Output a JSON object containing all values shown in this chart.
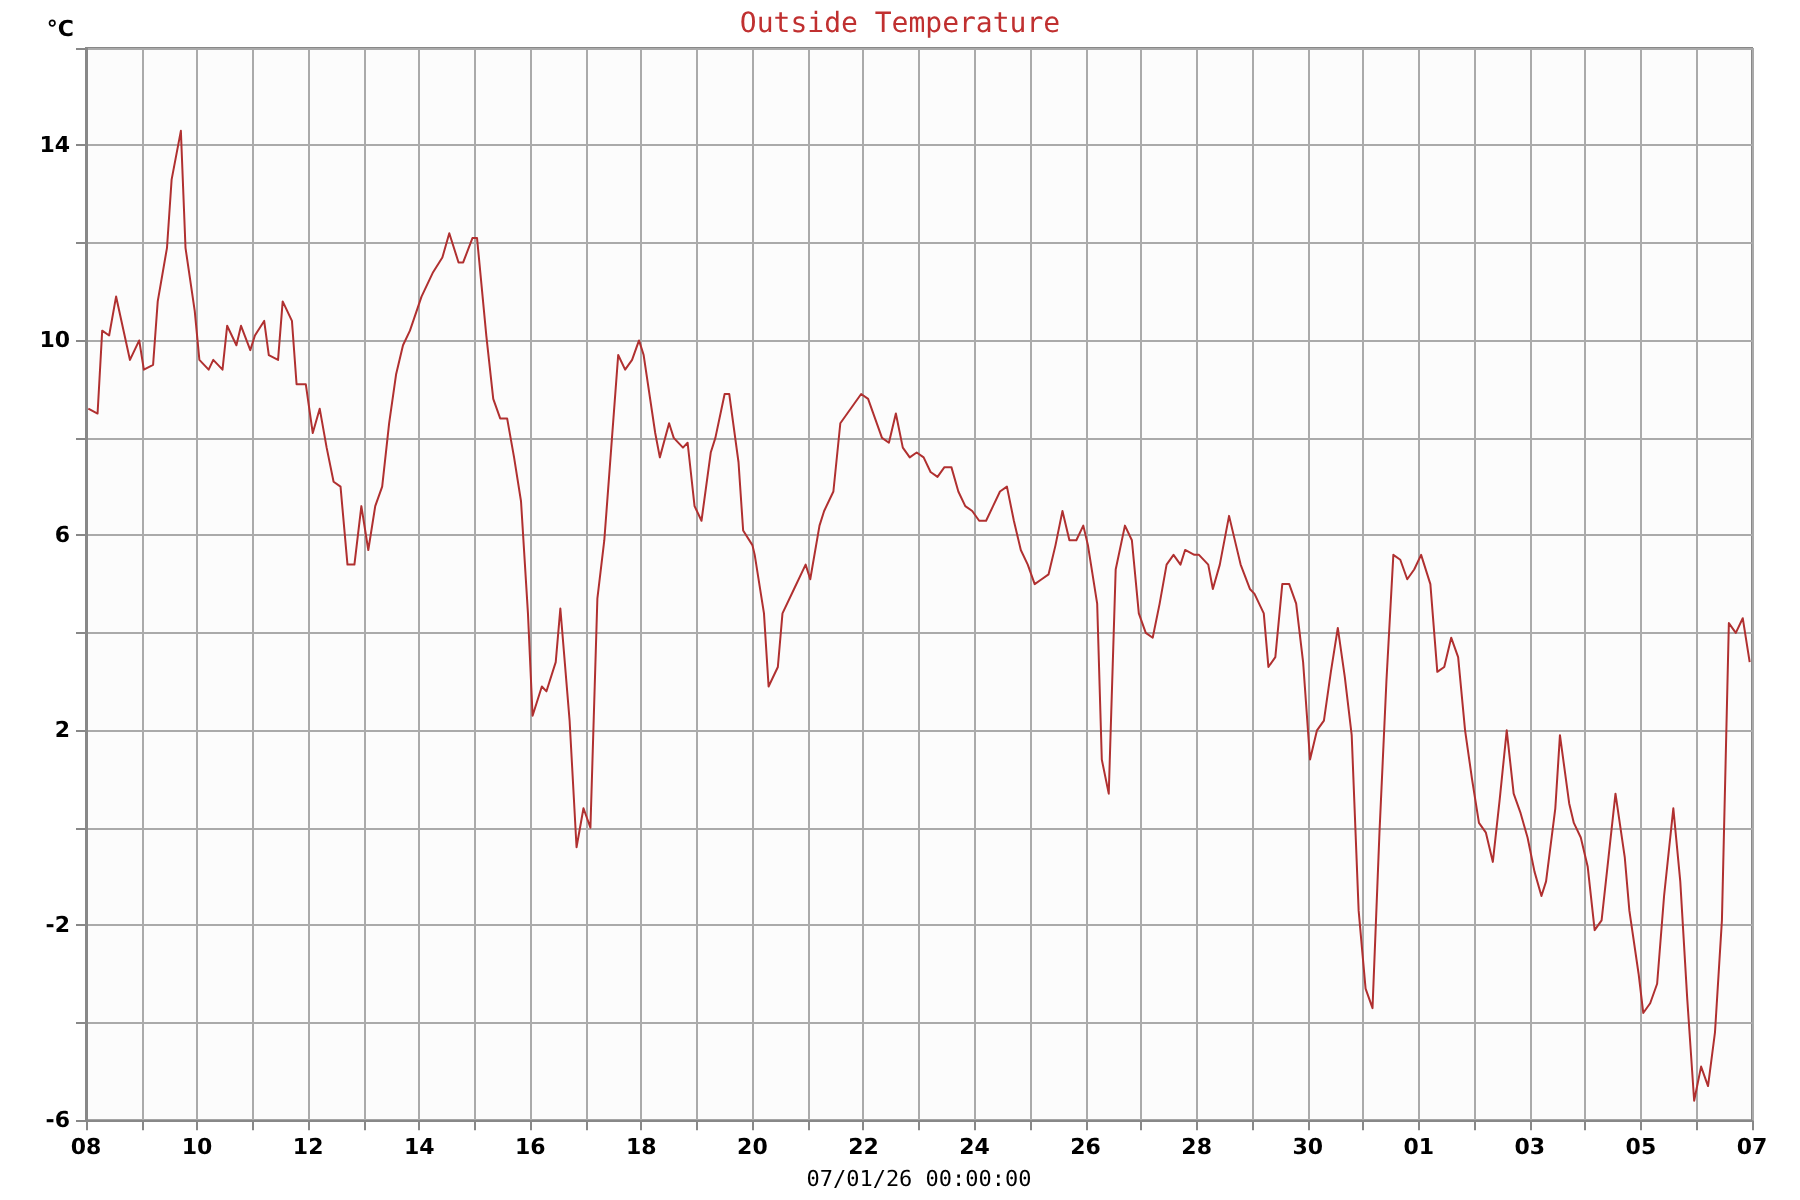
{
  "chart_data": {
    "type": "line",
    "title": "Outside Temperature",
    "ylabel": "°C",
    "xlabel": "07/01/26 00:00:00",
    "xlim": [
      "--01-08",
      "--02-07"
    ],
    "xticks": [
      {
        "value": "--01-08",
        "label": "08"
      },
      {
        "value": "--01-09",
        "label": null
      },
      {
        "value": "--01-10",
        "label": "10"
      },
      {
        "value": "--01-11",
        "label": null
      },
      {
        "value": "--01-12",
        "label": "12"
      },
      {
        "value": "--01-13",
        "label": null
      },
      {
        "value": "--01-14",
        "label": "14"
      },
      {
        "value": "--01-15",
        "label": null
      },
      {
        "value": "--01-16",
        "label": "16"
      },
      {
        "value": "--01-17",
        "label": null
      },
      {
        "value": "--01-18",
        "label": "18"
      },
      {
        "value": "--01-19",
        "label": null
      },
      {
        "value": "--01-20",
        "label": "20"
      },
      {
        "value": "--01-21",
        "label": null
      },
      {
        "value": "--01-22",
        "label": "22"
      },
      {
        "value": "--01-23",
        "label": null
      },
      {
        "value": "--01-24",
        "label": "24"
      },
      {
        "value": "--01-25",
        "label": null
      },
      {
        "value": "--01-26",
        "label": "26"
      },
      {
        "value": "--01-27",
        "label": null
      },
      {
        "value": "--01-28",
        "label": "28"
      },
      {
        "value": "--01-29",
        "label": null
      },
      {
        "value": "--01-30",
        "label": "30"
      },
      {
        "value": "--01-31",
        "label": null
      },
      {
        "value": "--02-01",
        "label": "01"
      },
      {
        "value": "--02-02",
        "label": null
      },
      {
        "value": "--02-03",
        "label": "03"
      },
      {
        "value": "--02-04",
        "label": null
      },
      {
        "value": "--02-05",
        "label": "05"
      },
      {
        "value": "--02-06",
        "label": null
      },
      {
        "value": "--02-07",
        "label": "07"
      }
    ],
    "ylim": [
      -6,
      16
    ],
    "yticks": [
      -6,
      {
        "value": -4,
        "label": null
      },
      -2,
      {
        "value": 0,
        "label": null
      },
      2,
      {
        "value": 4,
        "label": null
      },
      6,
      {
        "value": 8,
        "label": null
      },
      10,
      {
        "value": 12,
        "label": null
      },
      14,
      {
        "value": 16,
        "label": null
      }
    ],
    "grid": true,
    "marker": "none",
    "line_style": "solid",
    "series": [
      {
        "color": "#b03030",
        "x": [
          "--01-08T01:00",
          "--01-08T05:00",
          "--01-08T07:00",
          "--01-08T10:00",
          "--01-08T13:00",
          "--01-08T19:00",
          "--01-08T23:00",
          "--01-09T01:00",
          "--01-09T05:00",
          "--01-09T07:00",
          "--01-09T11:00",
          "--01-09T13:00",
          "--01-09T17:00",
          "--01-09T19:00",
          "--01-09T23:00",
          "--01-10T01:00",
          "--01-10T05:00",
          "--01-10T07:00",
          "--01-10T11:00",
          "--01-10T13:00",
          "--01-10T17:00",
          "--01-10T19:00",
          "--01-10T23:00",
          "--01-11T01:00",
          "--01-11T05:00",
          "--01-11T07:00",
          "--01-11T11:00",
          "--01-11T13:00",
          "--01-11T17:00",
          "--01-11T19:00",
          "--01-11T23:00",
          "--01-12T02:00",
          "--01-12T05:00",
          "--01-12T08:00",
          "--01-12T11:00",
          "--01-12T14:00",
          "--01-12T17:00",
          "--01-12T20:00",
          "--01-12T23:00",
          "--01-13T02:00",
          "--01-13T05:00",
          "--01-13T08:00",
          "--01-13T11:00",
          "--01-13T14:00",
          "--01-13T17:00",
          "--01-13T20:00",
          "--01-14T01:00",
          "--01-14T06:00",
          "--01-14T10:00",
          "--01-14T13:00",
          "--01-14T17:00",
          "--01-14T19:00",
          "--01-14T23:00",
          "--01-15T01:00",
          "--01-15T05:00",
          "--01-15T08:00",
          "--01-15T11:00",
          "--01-15T14:00",
          "--01-15T17:00",
          "--01-15T20:00",
          "--01-15T23:00",
          "--01-16T01:00",
          "--01-16T05:00",
          "--01-16T07:00",
          "--01-16T11:00",
          "--01-16T13:00",
          "--01-16T17:00",
          "--01-16T20:00",
          "--01-16T23:00",
          "--01-17T02:00",
          "--01-17T05:00",
          "--01-17T08:00",
          "--01-17T11:00",
          "--01-17T14:00",
          "--01-17T17:00",
          "--01-17T20:00",
          "--01-17T23:00",
          "--01-18T01:00",
          "--01-18T06:00",
          "--01-18T08:00",
          "--01-18T12:00",
          "--01-18T14:00",
          "--01-18T18:00",
          "--01-18T20:00",
          "--01-18T23:00",
          "--01-19T02:00",
          "--01-19T06:00",
          "--01-19T08:00",
          "--01-19T12:00",
          "--01-19T14:00",
          "--01-19T18:00",
          "--01-19T20:00",
          "--01-20T00:00",
          "--01-20T01:00",
          "--01-20T05:00",
          "--01-20T07:00",
          "--01-20T11:00",
          "--01-20T13:00",
          "--01-20T18:00",
          "--01-20T23:00",
          "--01-21T01:00",
          "--01-21T05:00",
          "--01-21T07:00",
          "--01-21T11:00",
          "--01-21T14:00",
          "--01-21T17:00",
          "--01-21T20:00",
          "--01-21T23:00",
          "--01-22T02:00",
          "--01-22T05:00",
          "--01-22T08:00",
          "--01-22T11:00",
          "--01-22T14:00",
          "--01-22T17:00",
          "--01-22T20:00",
          "--01-22T23:00",
          "--01-23T02:00",
          "--01-23T05:00",
          "--01-23T08:00",
          "--01-23T11:00",
          "--01-23T14:00",
          "--01-23T17:00",
          "--01-23T20:00",
          "--01-23T23:00",
          "--01-24T02:00",
          "--01-24T05:00",
          "--01-24T08:00",
          "--01-24T11:00",
          "--01-24T14:00",
          "--01-24T17:00",
          "--01-24T20:00",
          "--01-24T23:00",
          "--01-25T02:00",
          "--01-25T05:00",
          "--01-25T08:00",
          "--01-25T11:00",
          "--01-25T14:00",
          "--01-25T17:00",
          "--01-25T20:00",
          "--01-25T23:00",
          "--01-26T01:00",
          "--01-26T05:00",
          "--01-26T07:00",
          "--01-26T10:00",
          "--01-26T13:00",
          "--01-26T17:00",
          "--01-26T20:00",
          "--01-26T23:00",
          "--01-27T02:00",
          "--01-27T05:00",
          "--01-27T08:00",
          "--01-27T11:00",
          "--01-27T14:00",
          "--01-27T17:00",
          "--01-27T19:00",
          "--01-27T23:00",
          "--01-28T01:00",
          "--01-28T05:00",
          "--01-28T07:00",
          "--01-28T10:00",
          "--01-28T14:00",
          "--01-28T17:00",
          "--01-28T19:00",
          "--01-28T23:00",
          "--01-29T01:00",
          "--01-29T05:00",
          "--01-29T07:00",
          "--01-29T10:00",
          "--01-29T13:00",
          "--01-29T16:00",
          "--01-29T19:00",
          "--01-29T22:00",
          "--01-30T01:00",
          "--01-30T04:00",
          "--01-30T07:00",
          "--01-30T10:00",
          "--01-30T13:00",
          "--01-30T16:00",
          "--01-30T19:00",
          "--01-30T22:00",
          "--01-31T01:00",
          "--01-31T04:00",
          "--01-31T07:00",
          "--01-31T10:00",
          "--01-31T13:00",
          "--01-31T16:00",
          "--01-31T19:00",
          "--01-31T22:00",
          "--02-01T01:00",
          "--02-01T05:00",
          "--02-01T08:00",
          "--02-01T11:00",
          "--02-01T14:00",
          "--02-01T17:00",
          "--02-01T20:00",
          "--02-01T23:00",
          "--02-02T02:00",
          "--02-02T05:00",
          "--02-02T08:00",
          "--02-02T11:00",
          "--02-02T14:00",
          "--02-02T17:00",
          "--02-02T20:00",
          "--02-02T23:00",
          "--02-03T02:00",
          "--02-03T05:00",
          "--02-03T07:00",
          "--02-03T11:00",
          "--02-03T13:00",
          "--02-03T17:00",
          "--02-03T19:00",
          "--02-03T22:00",
          "--02-04T01:00",
          "--02-04T04:00",
          "--02-04T07:00",
          "--02-04T10:00",
          "--02-04T13:00",
          "--02-04T17:00",
          "--02-04T19:00",
          "--02-04T23:00",
          "--02-05T01:00",
          "--02-05T04:00",
          "--02-05T07:00",
          "--02-05T10:00",
          "--02-05T14:00",
          "--02-05T17:00",
          "--02-05T20:00",
          "--02-05T23:00",
          "--02-06T02:00",
          "--02-06T05:00",
          "--02-06T08:00",
          "--02-06T11:00",
          "--02-06T14:00",
          "--02-06T17:00",
          "--02-06T20:00",
          "--02-06T23:00"
        ],
        "values": [
          8.6,
          8.5,
          10.2,
          10.1,
          10.9,
          9.6,
          10.0,
          9.4,
          9.5,
          10.8,
          11.9,
          13.3,
          14.3,
          11.9,
          10.6,
          9.6,
          9.4,
          9.6,
          9.4,
          10.3,
          9.9,
          10.3,
          9.8,
          10.1,
          10.4,
          9.7,
          9.6,
          10.8,
          10.4,
          9.1,
          9.1,
          8.1,
          8.6,
          7.8,
          7.1,
          7.0,
          5.4,
          5.4,
          6.6,
          5.7,
          6.6,
          7.0,
          8.3,
          9.3,
          9.9,
          10.2,
          10.9,
          11.4,
          11.7,
          12.2,
          11.6,
          11.6,
          12.1,
          12.1,
          10.1,
          8.8,
          8.4,
          8.4,
          7.6,
          6.7,
          4.4,
          2.3,
          2.9,
          2.8,
          3.4,
          4.5,
          2.2,
          -0.4,
          0.4,
          0.0,
          4.7,
          5.9,
          7.8,
          9.7,
          9.4,
          9.6,
          10.0,
          9.7,
          8.1,
          7.6,
          8.3,
          8.0,
          7.8,
          7.9,
          6.6,
          6.3,
          7.7,
          8.0,
          8.9,
          8.9,
          7.5,
          6.1,
          5.8,
          5.6,
          4.4,
          2.9,
          3.3,
          4.4,
          4.9,
          5.4,
          5.1,
          6.2,
          6.5,
          6.9,
          8.3,
          8.5,
          8.7,
          8.9,
          8.8,
          8.4,
          8.0,
          7.9,
          8.5,
          7.8,
          7.6,
          7.7,
          7.6,
          7.3,
          7.2,
          7.4,
          7.4,
          6.9,
          6.6,
          6.5,
          6.3,
          6.3,
          6.6,
          6.9,
          7.0,
          6.3,
          5.7,
          5.4,
          5.0,
          5.1,
          5.2,
          5.8,
          6.5,
          5.9,
          5.9,
          6.2,
          5.8,
          4.6,
          1.4,
          0.7,
          5.3,
          6.2,
          5.9,
          4.4,
          4.0,
          3.9,
          4.6,
          5.4,
          5.6,
          5.4,
          5.7,
          5.6,
          5.6,
          5.4,
          4.9,
          5.4,
          6.4,
          5.8,
          5.4,
          4.9,
          4.8,
          4.4,
          3.3,
          3.5,
          5.0,
          5.0,
          4.6,
          3.4,
          1.4,
          2.0,
          2.2,
          3.2,
          4.1,
          3.1,
          1.9,
          -1.7,
          -3.3,
          -3.7,
          -0.1,
          3.0,
          5.6,
          5.5,
          5.1,
          5.3,
          5.6,
          5.0,
          3.2,
          3.3,
          3.9,
          3.5,
          2.0,
          1.0,
          0.1,
          -0.1,
          -0.7,
          0.6,
          2.0,
          0.7,
          0.3,
          -0.2,
          -0.9,
          -1.4,
          -1.1,
          0.4,
          1.9,
          0.5,
          0.1,
          -0.2,
          -0.8,
          -2.1,
          -1.9,
          -0.6,
          0.7,
          -0.6,
          -1.7,
          -3.0,
          -3.8,
          -3.6,
          -3.2,
          -1.4,
          0.4,
          -1.1,
          -3.5,
          -5.6,
          -4.9,
          -5.3,
          -4.2,
          -1.9,
          4.2,
          4.0,
          4.3,
          3.4
        ]
      }
    ]
  }
}
